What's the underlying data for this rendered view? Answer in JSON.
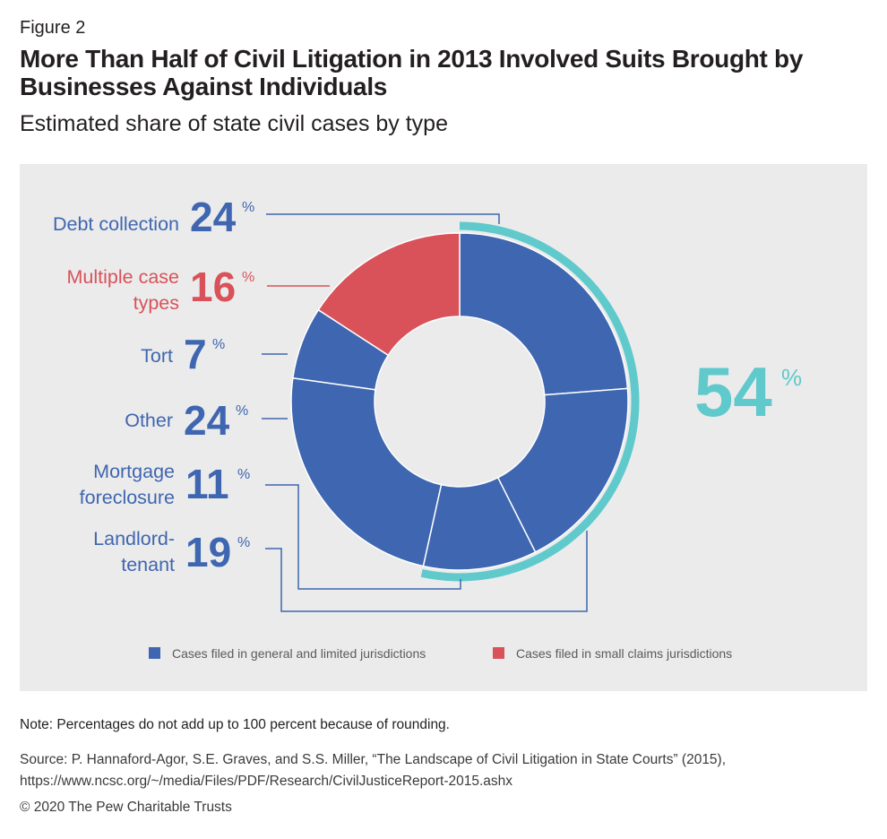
{
  "figure_label": "Figure 2",
  "title": "More Than Half of Civil Litigation in 2013 Involved Suits Brought by Businesses Against Individuals",
  "subtitle": "Estimated share of state civil cases by type",
  "note": "Note: Percentages do not add up to 100 percent because of rounding.",
  "source": "Source: P. Hannaford-Agor, S.E. Graves, and S.S. Miller, “The Landscape of Civil Litigation in State Courts” (2015), https://www.ncsc.org/~/media/Files/PDF/Research/CivilJusticeReport-2015.ashx",
  "copyright": "© 2020 The Pew Charitable Trusts",
  "colors": {
    "general": "#3f66b0",
    "small_claims": "#d9525a",
    "highlight": "#5fc9cc",
    "leader": "#3f66b0"
  },
  "chart_data": {
    "type": "pie",
    "variant": "donut",
    "title": "Estimated share of state civil cases by type",
    "unit": "%",
    "slices": [
      {
        "name": "Debt collection",
        "label_lines": [
          "Debt collection"
        ],
        "value": 24,
        "category": "general",
        "business_vs_individual": true
      },
      {
        "name": "Landlord-tenant",
        "label_lines": [
          "Landlord-",
          "tenant"
        ],
        "value": 19,
        "category": "general",
        "business_vs_individual": true
      },
      {
        "name": "Mortgage foreclosure",
        "label_lines": [
          "Mortgage",
          "foreclosure"
        ],
        "value": 11,
        "category": "general",
        "business_vs_individual": true
      },
      {
        "name": "Other",
        "label_lines": [
          "Other"
        ],
        "value": 24,
        "category": "general",
        "business_vs_individual": false
      },
      {
        "name": "Tort",
        "label_lines": [
          "Tort"
        ],
        "value": 7,
        "category": "general",
        "business_vs_individual": false
      },
      {
        "name": "Multiple case types",
        "label_lines": [
          "Multiple case",
          "types"
        ],
        "value": 16,
        "category": "small_claims",
        "business_vs_individual": false
      }
    ],
    "highlight": {
      "value": 54,
      "unit": "%",
      "covers": [
        "Debt collection",
        "Landlord-tenant",
        "Mortgage foreclosure"
      ]
    },
    "legend": [
      {
        "label": "Cases filed in general and limited jurisdictions",
        "category": "general"
      },
      {
        "label": "Cases filed in small claims jurisdictions",
        "category": "small_claims"
      }
    ]
  }
}
